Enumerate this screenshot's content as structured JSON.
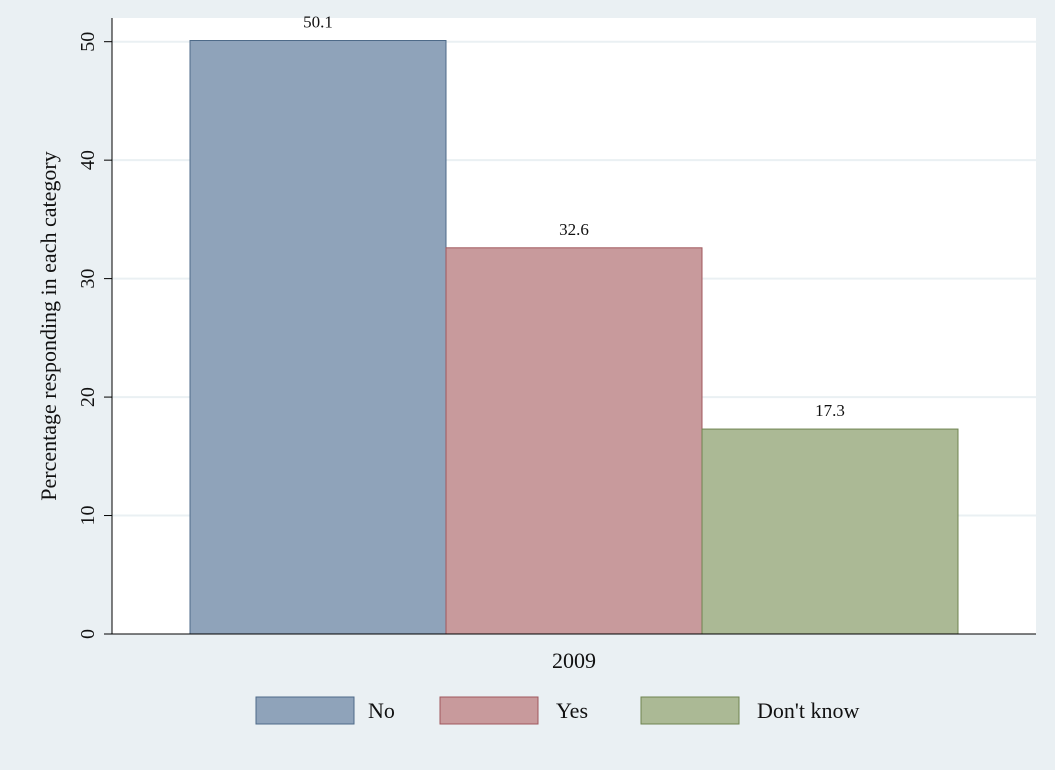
{
  "chart_data": {
    "type": "bar",
    "title": "",
    "ylabel": "Percentage responding in each category",
    "xlabel": "",
    "x_group_label": "2009",
    "ylim": [
      0,
      52
    ],
    "yticks": [
      0,
      10,
      20,
      30,
      40,
      50
    ],
    "grid": true,
    "legend_position": "bottom",
    "series": [
      {
        "name": "No",
        "value": 50.1,
        "label": "50.1",
        "color": "#8fa3ba"
      },
      {
        "name": "Yes",
        "value": 32.6,
        "label": "32.6",
        "color": "#c89a9c"
      },
      {
        "name": "Don't know",
        "value": 17.3,
        "label": "17.3",
        "color": "#abb995"
      }
    ]
  }
}
